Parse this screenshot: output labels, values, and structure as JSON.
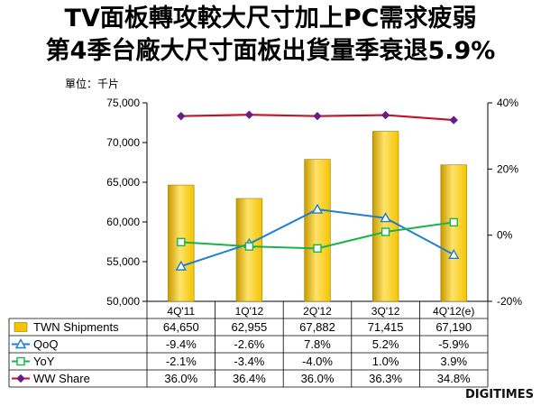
{
  "title_line1": "TV面板轉攻較大尺寸加上PC需求疲弱",
  "title_line2": "第4季台廠大尺寸面板出貨量季衰退5.9%",
  "unit_label": "單位：千片",
  "brand": "DIGITIMES",
  "chart_data": {
    "type": "bar",
    "categories": [
      "4Q'11",
      "1Q'12",
      "2Q'12",
      "3Q'12",
      "4Q'12(e)"
    ],
    "y_left": {
      "min": 50000,
      "max": 75000,
      "step": 5000,
      "ticks": [
        "50,000",
        "55,000",
        "60,000",
        "65,000",
        "70,000",
        "75,000"
      ]
    },
    "y_right": {
      "min": -20,
      "max": 40,
      "step": 20,
      "ticks": [
        "-20%",
        "0%",
        "20%",
        "40%"
      ]
    },
    "grid": false,
    "legend": "table-below",
    "series": [
      {
        "name": "TWN Shipments",
        "kind": "bar",
        "axis": "left",
        "color": "#f5c400",
        "values": [
          64650,
          62955,
          67882,
          71415,
          67190
        ],
        "labels": [
          "64,650",
          "62,955",
          "67,882",
          "71,415",
          "67,190"
        ]
      },
      {
        "name": "QoQ",
        "kind": "line",
        "axis": "right",
        "color": "#1f7fd0",
        "marker": "triangle",
        "values": [
          -9.4,
          -2.6,
          7.8,
          5.2,
          -5.9
        ],
        "labels": [
          "-9.4%",
          "-2.6%",
          "7.8%",
          "5.2%",
          "-5.9%"
        ]
      },
      {
        "name": "YoY",
        "kind": "line",
        "axis": "right",
        "color": "#19b34a",
        "marker": "square",
        "values": [
          -2.1,
          -3.4,
          -4.0,
          1.0,
          3.9
        ],
        "labels": [
          "-2.1%",
          "-3.4%",
          "-4.0%",
          "1.0%",
          "3.9%"
        ]
      },
      {
        "name": "WW Share",
        "kind": "line",
        "axis": "right",
        "color": "#c0142a",
        "marker": "diamond",
        "values": [
          36.0,
          36.4,
          36.0,
          36.3,
          34.8
        ],
        "labels": [
          "36.0%",
          "36.4%",
          "36.0%",
          "36.3%",
          "34.8%"
        ]
      }
    ]
  }
}
